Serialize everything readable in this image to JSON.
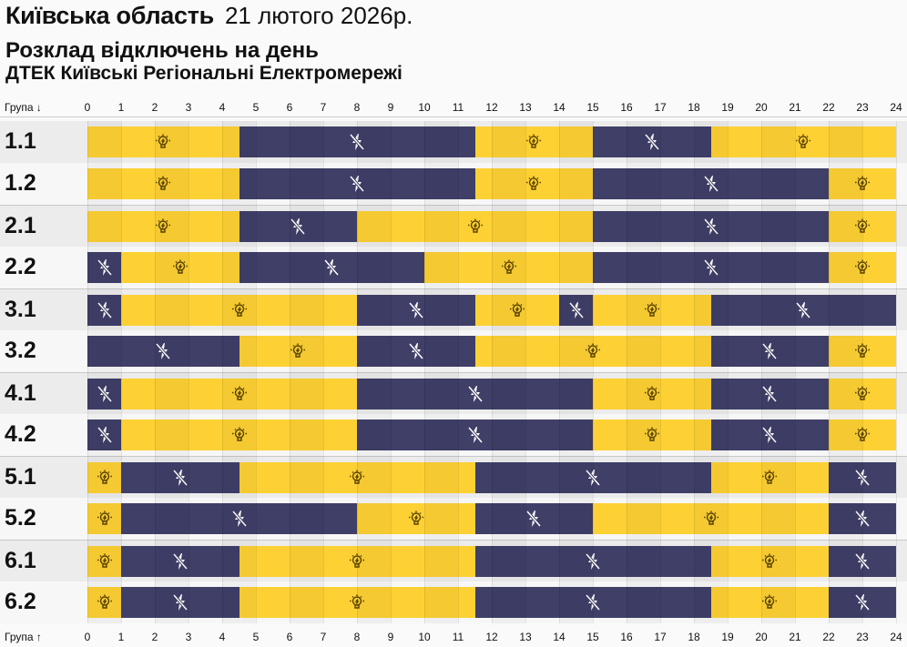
{
  "header": {
    "region": "Київська область",
    "date": "21 лютого 2026р.",
    "subtitle": "Розклад відключень на день",
    "company": "ДТЕК Київські Регіональні Електромережі"
  },
  "colors": {
    "on": "#fdd133",
    "off": "#3f3f68",
    "row_odd": "#ececec",
    "row_even": "#f7f7f7"
  },
  "icons": {
    "on": "lightbulb-icon",
    "off": "no-power-icon"
  },
  "chart_data": {
    "type": "timeline",
    "top_axis_label": "Група ↓",
    "bottom_axis_label": "Група ↑",
    "x_ticks": [
      "0",
      "1",
      "2",
      "3",
      "4",
      "5",
      "6",
      "7",
      "8",
      "9",
      "10",
      "11",
      "12",
      "13",
      "14",
      "15",
      "16",
      "17",
      "18",
      "19",
      "20",
      "21",
      "22",
      "23",
      "24"
    ],
    "xlim": [
      0,
      24
    ],
    "groups": [
      {
        "label": "1.1",
        "segments": [
          [
            0,
            4.5,
            "on"
          ],
          [
            4.5,
            11.5,
            "off"
          ],
          [
            11.5,
            15,
            "on"
          ],
          [
            15,
            18.5,
            "off"
          ],
          [
            18.5,
            24,
            "on"
          ]
        ]
      },
      {
        "label": "1.2",
        "segments": [
          [
            0,
            4.5,
            "on"
          ],
          [
            4.5,
            11.5,
            "off"
          ],
          [
            11.5,
            15,
            "on"
          ],
          [
            15,
            22,
            "off"
          ],
          [
            22,
            24,
            "on"
          ]
        ]
      },
      {
        "label": "2.1",
        "segments": [
          [
            0,
            4.5,
            "on"
          ],
          [
            4.5,
            8,
            "off"
          ],
          [
            8,
            15,
            "on"
          ],
          [
            15,
            22,
            "off"
          ],
          [
            22,
            24,
            "on"
          ]
        ]
      },
      {
        "label": "2.2",
        "segments": [
          [
            0,
            1,
            "off"
          ],
          [
            1,
            4.5,
            "on"
          ],
          [
            4.5,
            10,
            "off"
          ],
          [
            10,
            15,
            "on"
          ],
          [
            15,
            22,
            "off"
          ],
          [
            22,
            24,
            "on"
          ]
        ]
      },
      {
        "label": "3.1",
        "segments": [
          [
            0,
            1,
            "off"
          ],
          [
            1,
            8,
            "on"
          ],
          [
            8,
            11.5,
            "off"
          ],
          [
            11.5,
            14,
            "on"
          ],
          [
            14,
            15,
            "off"
          ],
          [
            15,
            18.5,
            "on"
          ],
          [
            18.5,
            24,
            "off"
          ]
        ]
      },
      {
        "label": "3.2",
        "segments": [
          [
            0,
            4.5,
            "off"
          ],
          [
            4.5,
            8,
            "on"
          ],
          [
            8,
            11.5,
            "off"
          ],
          [
            11.5,
            18.5,
            "on"
          ],
          [
            18.5,
            22,
            "off"
          ],
          [
            22,
            24,
            "on"
          ]
        ]
      },
      {
        "label": "4.1",
        "segments": [
          [
            0,
            1,
            "off"
          ],
          [
            1,
            8,
            "on"
          ],
          [
            8,
            15,
            "off"
          ],
          [
            15,
            18.5,
            "on"
          ],
          [
            18.5,
            22,
            "off"
          ],
          [
            22,
            24,
            "on"
          ]
        ]
      },
      {
        "label": "4.2",
        "segments": [
          [
            0,
            1,
            "off"
          ],
          [
            1,
            8,
            "on"
          ],
          [
            8,
            15,
            "off"
          ],
          [
            15,
            18.5,
            "on"
          ],
          [
            18.5,
            22,
            "off"
          ],
          [
            22,
            24,
            "on"
          ]
        ]
      },
      {
        "label": "5.1",
        "segments": [
          [
            0,
            1,
            "on"
          ],
          [
            1,
            4.5,
            "off"
          ],
          [
            4.5,
            11.5,
            "on"
          ],
          [
            11.5,
            18.5,
            "off"
          ],
          [
            18.5,
            22,
            "on"
          ],
          [
            22,
            24,
            "off"
          ]
        ]
      },
      {
        "label": "5.2",
        "segments": [
          [
            0,
            1,
            "on"
          ],
          [
            1,
            8,
            "off"
          ],
          [
            8,
            11.5,
            "on"
          ],
          [
            11.5,
            15,
            "off"
          ],
          [
            15,
            22,
            "on"
          ],
          [
            22,
            24,
            "off"
          ]
        ]
      },
      {
        "label": "6.1",
        "segments": [
          [
            0,
            1,
            "on"
          ],
          [
            1,
            4.5,
            "off"
          ],
          [
            4.5,
            11.5,
            "on"
          ],
          [
            11.5,
            18.5,
            "off"
          ],
          [
            18.5,
            22,
            "on"
          ],
          [
            22,
            24,
            "off"
          ]
        ]
      },
      {
        "label": "6.2",
        "segments": [
          [
            0,
            1,
            "on"
          ],
          [
            1,
            4.5,
            "off"
          ],
          [
            4.5,
            11.5,
            "on"
          ],
          [
            11.5,
            18.5,
            "off"
          ],
          [
            18.5,
            22,
            "on"
          ],
          [
            22,
            24,
            "off"
          ]
        ]
      }
    ]
  }
}
